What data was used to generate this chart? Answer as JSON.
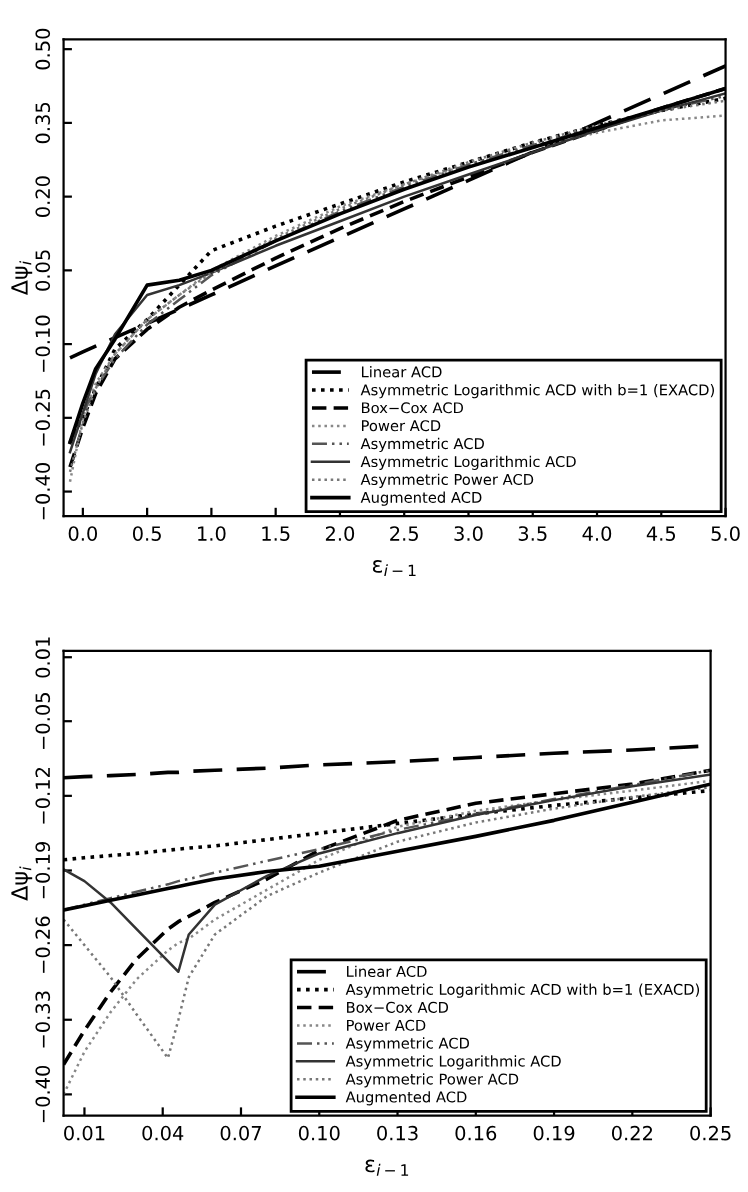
{
  "chart_data": [
    {
      "type": "line",
      "xlabel": "ε$_{i−1}$",
      "ylabel": "Δψ$_{i}$",
      "xlim": [
        -0.15,
        5.0
      ],
      "ylim": [
        -0.45,
        0.52
      ],
      "xticks": [
        {
          "value": 0.0,
          "label": "0.0"
        },
        {
          "value": 0.5,
          "label": "0.5"
        },
        {
          "value": 1.0,
          "label": "1.0"
        },
        {
          "value": 1.5,
          "label": "1.5"
        },
        {
          "value": 2.0,
          "label": "2.0"
        },
        {
          "value": 2.5,
          "label": "2.5"
        },
        {
          "value": 3.0,
          "label": "3.0"
        },
        {
          "value": 3.5,
          "label": "3.5"
        },
        {
          "value": 4.0,
          "label": "4.0"
        },
        {
          "value": 4.5,
          "label": "4.5"
        },
        {
          "value": 5.0,
          "label": "5.0"
        }
      ],
      "yticks": [
        {
          "value": -0.4,
          "label": "−0.40"
        },
        {
          "value": -0.25,
          "label": "−0.25"
        },
        {
          "value": -0.1,
          "label": "−0.10"
        },
        {
          "value": 0.05,
          "label": "0.05"
        },
        {
          "value": 0.2,
          "label": "0.20"
        },
        {
          "value": 0.35,
          "label": "0.35"
        },
        {
          "value": 0.5,
          "label": "0.50"
        }
      ],
      "grid": false,
      "legend": "bottom right",
      "x": [
        -0.1,
        0.0,
        0.1,
        0.25,
        0.5,
        0.75,
        1.0,
        1.5,
        2.0,
        2.5,
        3.0,
        3.5,
        4.0,
        4.5,
        5.0
      ],
      "series": [
        {
          "name": "Linear ACD",
          "color": "#000000",
          "line_style": "longdash",
          "values": [
            -0.128,
            -0.116,
            -0.104,
            -0.087,
            -0.058,
            -0.029,
            0.0,
            0.059,
            0.117,
            0.175,
            0.233,
            0.291,
            0.35,
            0.408,
            0.466
          ]
        },
        {
          "name": "Asymmetric Logarithmic ACD with b=1 (EXACD)",
          "color": "#000000",
          "line_style": "dotted",
          "values": [
            -0.3,
            -0.25,
            -0.19,
            -0.11,
            -0.05,
            0.02,
            0.09,
            0.14,
            0.185,
            0.23,
            0.27,
            0.31,
            0.345,
            0.375,
            0.4
          ]
        },
        {
          "name": "Box−Cox ACD",
          "color": "#000000",
          "line_style": "dashed",
          "values": [
            -0.35,
            -0.27,
            -0.2,
            -0.13,
            -0.07,
            -0.025,
            0.01,
            0.075,
            0.135,
            0.19,
            0.24,
            0.29,
            0.335,
            0.38,
            0.42
          ]
        },
        {
          "name": "Power ACD",
          "color": "#888888",
          "line_style": "dotted",
          "values": [
            -0.38,
            -0.25,
            -0.18,
            -0.12,
            -0.05,
            0.0,
            0.05,
            0.12,
            0.18,
            0.225,
            0.265,
            0.3,
            0.33,
            0.355,
            0.365
          ]
        },
        {
          "name": "Asymmetric ACD",
          "color": "#555555",
          "line_style": "dashdot",
          "values": [
            -0.3,
            -0.24,
            -0.19,
            -0.13,
            -0.06,
            -0.01,
            0.04,
            0.11,
            0.17,
            0.22,
            0.265,
            0.305,
            0.34,
            0.375,
            0.405
          ]
        },
        {
          "name": "Asymmetric Logarithmic ACD",
          "color": "#333333",
          "line_style": "solid",
          "values": [
            -0.32,
            -0.24,
            -0.16,
            -0.08,
            0.0,
            0.02,
            0.045,
            0.1,
            0.15,
            0.2,
            0.245,
            0.29,
            0.335,
            0.375,
            0.41
          ]
        },
        {
          "name": "Asymmetric Power ACD",
          "color": "#777777",
          "line_style": "dotted",
          "values": [
            -0.36,
            -0.26,
            -0.19,
            -0.12,
            -0.05,
            0.0,
            0.045,
            0.115,
            0.175,
            0.225,
            0.27,
            0.31,
            0.345,
            0.375,
            0.395
          ]
        },
        {
          "name": "Augmented ACD",
          "color": "#000000",
          "line_style": "solid",
          "values": [
            -0.3,
            -0.22,
            -0.15,
            -0.09,
            0.02,
            0.03,
            0.05,
            0.11,
            0.165,
            0.215,
            0.26,
            0.3,
            0.34,
            0.38,
            0.42
          ]
        }
      ]
    },
    {
      "type": "line",
      "xlabel": "ε$_{i−1}$",
      "ylabel": "Δψ$_{i}$",
      "xlim": [
        0.002,
        0.25
      ],
      "ylim": [
        -0.42,
        0.016
      ],
      "xticks": [
        0.01,
        0.04,
        0.07,
        {
          "value": 0.1,
          "label": "0.10"
        },
        0.13,
        0.16,
        0.19,
        0.22,
        0.25
      ],
      "yticks": [
        {
          "value": -0.4,
          "label": "−0.40"
        },
        {
          "value": -0.33,
          "label": "−0.33"
        },
        {
          "value": -0.26,
          "label": "−0.26"
        },
        {
          "value": -0.19,
          "label": "−0.19"
        },
        {
          "value": -0.12,
          "label": "−0.12"
        },
        {
          "value": -0.05,
          "label": "−0.05"
        },
        0.01
      ],
      "grid": false,
      "legend": "bottom right",
      "x": [
        0.002,
        0.01,
        0.02,
        0.03,
        0.042,
        0.046,
        0.05,
        0.06,
        0.08,
        0.1,
        0.13,
        0.16,
        0.19,
        0.22,
        0.25
      ],
      "series": [
        {
          "name": "Linear ACD",
          "color": "#000000",
          "line_style": "longdash",
          "values": [
            -0.103,
            -0.102,
            -0.101,
            -0.1,
            -0.098,
            -0.098,
            -0.097,
            -0.096,
            -0.094,
            -0.091,
            -0.088,
            -0.084,
            -0.08,
            -0.077,
            -0.073
          ]
        },
        {
          "name": "Asymmetric Logarithmic ACD with b=1 (EXACD)",
          "color": "#000000",
          "line_style": "dotted",
          "values": [
            -0.18,
            -0.178,
            -0.176,
            -0.174,
            -0.171,
            -0.17,
            -0.169,
            -0.167,
            -0.161,
            -0.155,
            -0.146,
            -0.137,
            -0.129,
            -0.122,
            -0.115
          ]
        },
        {
          "name": "Box−Cox ACD",
          "color": "#000000",
          "line_style": "dashed",
          "values": [
            -0.372,
            -0.34,
            -0.304,
            -0.273,
            -0.245,
            -0.238,
            -0.233,
            -0.22,
            -0.198,
            -0.171,
            -0.143,
            -0.127,
            -0.118,
            -0.109,
            -0.096
          ]
        },
        {
          "name": "Power ACD",
          "color": "#888888",
          "line_style": "dotted",
          "values": [
            -0.4,
            -0.36,
            -0.323,
            -0.292,
            -0.265,
            -0.258,
            -0.254,
            -0.236,
            -0.208,
            -0.18,
            -0.149,
            -0.134,
            -0.124,
            -0.115,
            -0.106
          ]
        },
        {
          "name": "Asymmetric ACD",
          "color": "#555555",
          "line_style": "dashdot",
          "values": [
            -0.227,
            -0.222,
            -0.216,
            -0.21,
            -0.203,
            -0.2,
            -0.198,
            -0.192,
            -0.181,
            -0.17,
            -0.152,
            -0.137,
            -0.123,
            -0.11,
            -0.096
          ]
        },
        {
          "name": "Asymmetric Logarithmic ACD",
          "color": "#333333",
          "line_style": "solid",
          "values": [
            -0.189,
            -0.2,
            -0.22,
            -0.245,
            -0.275,
            -0.285,
            -0.25,
            -0.222,
            -0.195,
            -0.174,
            -0.155,
            -0.138,
            -0.124,
            -0.111,
            -0.1
          ]
        },
        {
          "name": "Asymmetric Power ACD",
          "color": "#777777",
          "line_style": "dotted",
          "values": [
            -0.236,
            -0.26,
            -0.29,
            -0.325,
            -0.366,
            -0.33,
            -0.29,
            -0.25,
            -0.214,
            -0.192,
            -0.163,
            -0.145,
            -0.132,
            -0.121,
            -0.112
          ]
        },
        {
          "name": "Augmented ACD",
          "color": "#000000",
          "line_style": "solid",
          "values": [
            -0.227,
            -0.223,
            -0.218,
            -0.213,
            -0.207,
            -0.205,
            -0.203,
            -0.198,
            -0.191,
            -0.186,
            -0.172,
            -0.158,
            -0.143,
            -0.126,
            -0.109
          ]
        }
      ]
    }
  ]
}
